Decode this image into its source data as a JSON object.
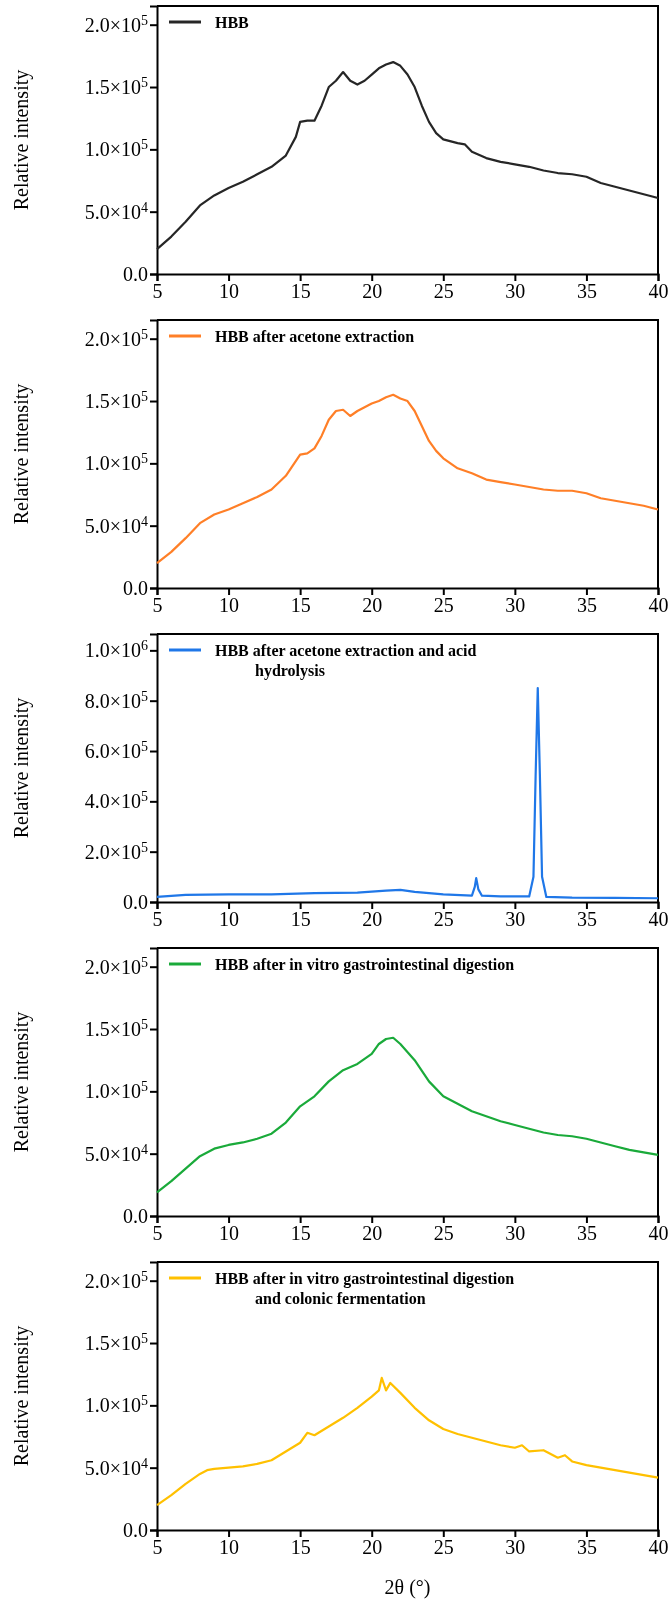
{
  "chart_data": [
    {
      "type": "line",
      "ylabel": "Relative intensity",
      "xlim": [
        5,
        40
      ],
      "xticks": [
        5,
        10,
        15,
        20,
        25,
        30,
        35,
        40
      ],
      "ylim": [
        0,
        215000
      ],
      "yticks": [
        {
          "value": 0,
          "label": "0.0"
        },
        {
          "value": 50000,
          "label": "5.0×10$^{4}$"
        },
        {
          "value": 100000,
          "label": "1.0×10$^{5}$"
        },
        {
          "value": 150000,
          "label": "1.5×10$^{5}$"
        },
        {
          "value": 200000,
          "label": "2.0×10$^{5}$"
        }
      ],
      "legend": "top left",
      "grid": false,
      "marker": "none",
      "line_style": "solid",
      "series": [
        {
          "name": "HBB",
          "color": "#262626",
          "x": [
            5,
            6,
            7,
            8,
            9,
            10,
            11,
            12,
            13,
            14,
            14.7,
            15,
            15.5,
            16,
            16.5,
            17,
            17.5,
            18,
            18.5,
            19,
            19.5,
            20,
            20.5,
            21,
            21.5,
            22,
            22.5,
            23,
            23.5,
            24,
            24.5,
            25,
            26,
            26.5,
            27,
            28,
            29,
            30,
            31,
            32,
            33,
            34,
            35,
            36,
            37,
            38,
            39,
            40
          ],
          "values": [
            20000,
            30000,
            42000,
            55000,
            63000,
            69000,
            74000,
            80000,
            86000,
            95000,
            110000,
            122000,
            123000,
            123000,
            135000,
            150000,
            155000,
            162000,
            155000,
            152000,
            155000,
            160000,
            165000,
            168000,
            170000,
            167000,
            160000,
            150000,
            135000,
            122000,
            113000,
            108000,
            105000,
            104000,
            98000,
            93000,
            90000,
            88000,
            86000,
            83000,
            81000,
            80000,
            78000,
            73000,
            70000,
            67000,
            64000,
            61000
          ]
        }
      ]
    },
    {
      "type": "line",
      "ylabel": "Relative intensity",
      "xlim": [
        5,
        40
      ],
      "xticks": [
        5,
        10,
        15,
        20,
        25,
        30,
        35,
        40
      ],
      "ylim": [
        0,
        215000
      ],
      "yticks": [
        {
          "value": 0,
          "label": "0.0"
        },
        {
          "value": 50000,
          "label": "5.0×10$^{4}$"
        },
        {
          "value": 100000,
          "label": "1.0×10$^{5}$"
        },
        {
          "value": 150000,
          "label": "1.5×10$^{5}$"
        },
        {
          "value": 200000,
          "label": "2.0×10$^{5}$"
        }
      ],
      "legend": "top left",
      "grid": false,
      "marker": "none",
      "line_style": "solid",
      "series": [
        {
          "name": "HBB  after acetone extraction",
          "color": "#ff7f27",
          "x": [
            5,
            6,
            7,
            8,
            9,
            10,
            11,
            12,
            13,
            14,
            15,
            15.5,
            16,
            16.5,
            17,
            17.5,
            18,
            18.5,
            19,
            19.5,
            20,
            20.5,
            21,
            21.5,
            22,
            22.5,
            23,
            23.5,
            24,
            24.5,
            25,
            26,
            27,
            28,
            29,
            30,
            31,
            32,
            33,
            34,
            35,
            36,
            37,
            38,
            39,
            40
          ],
          "values": [
            20000,
            29000,
            40000,
            52000,
            59000,
            63000,
            68000,
            73000,
            79000,
            90000,
            107000,
            108000,
            112000,
            122000,
            135000,
            142000,
            143000,
            138000,
            142000,
            145000,
            148000,
            150000,
            153000,
            155000,
            152000,
            150000,
            142000,
            130000,
            118000,
            110000,
            104000,
            96000,
            92000,
            87000,
            85000,
            83000,
            81000,
            79000,
            78000,
            78000,
            76000,
            72000,
            70000,
            68000,
            66000,
            63000
          ]
        }
      ]
    },
    {
      "type": "line",
      "ylabel": "Relative intensity",
      "xlim": [
        5,
        40
      ],
      "xticks": [
        5,
        10,
        15,
        20,
        25,
        30,
        35,
        40
      ],
      "ylim": [
        0,
        1065000
      ],
      "yticks": [
        {
          "value": 0,
          "label": "0.0"
        },
        {
          "value": 200000,
          "label": "2.0×10$^{5}$"
        },
        {
          "value": 400000,
          "label": "4.0×10$^{5}$"
        },
        {
          "value": 600000,
          "label": "6.0×10$^{5}$"
        },
        {
          "value": 800000,
          "label": "8.0×10$^{5}$"
        },
        {
          "value": 1000000,
          "label": "1.0×10$^{6}$"
        }
      ],
      "legend": "top left",
      "grid": false,
      "marker": "none",
      "line_style": "solid",
      "series": [
        {
          "name": "HBB  after acetone extraction and acid hydrolysis",
          "color": "#1f77e8",
          "x": [
            5,
            7,
            10,
            13,
            16,
            19,
            21,
            22,
            23,
            25,
            27,
            27.2,
            27.3,
            27.45,
            27.7,
            29,
            31,
            31.3,
            31.45,
            31.6,
            31.75,
            31.9,
            32.2,
            34,
            37,
            40
          ],
          "values": [
            20000,
            28000,
            30000,
            30000,
            35000,
            37000,
            45000,
            48000,
            40000,
            30000,
            25000,
            60000,
            95000,
            50000,
            25000,
            22000,
            22000,
            100000,
            500000,
            850000,
            500000,
            100000,
            20000,
            17000,
            16000,
            15000
          ]
        }
      ]
    },
    {
      "type": "line",
      "ylabel": "Relative intensity",
      "xlim": [
        5,
        40
      ],
      "xticks": [
        5,
        10,
        15,
        20,
        25,
        30,
        35,
        40
      ],
      "ylim": [
        0,
        215000
      ],
      "yticks": [
        {
          "value": 0,
          "label": "0.0"
        },
        {
          "value": 50000,
          "label": "5.0×10$^{4}$"
        },
        {
          "value": 100000,
          "label": "1.0×10$^{5}$"
        },
        {
          "value": 150000,
          "label": "1.5×10$^{5}$"
        },
        {
          "value": 200000,
          "label": "2.0×10$^{5}$"
        }
      ],
      "legend": "top left",
      "grid": false,
      "marker": "none",
      "line_style": "solid",
      "series": [
        {
          "name": "HBB  after in vitro gastrointestinal digestion",
          "color": "#1aaa3a",
          "x": [
            5,
            6,
            7,
            8,
            9,
            10,
            11,
            12,
            13,
            14,
            15,
            16,
            17,
            18,
            19,
            20,
            20.5,
            21,
            21.5,
            22,
            23,
            24,
            25,
            26,
            27,
            28,
            29,
            30,
            31,
            32,
            33,
            34,
            35,
            36,
            37,
            38,
            39,
            40
          ],
          "values": [
            19000,
            28000,
            38000,
            48000,
            54000,
            57000,
            59000,
            62000,
            66000,
            75000,
            88000,
            96000,
            108000,
            117000,
            122000,
            130000,
            138000,
            142000,
            143000,
            138000,
            125000,
            108000,
            96000,
            90000,
            84000,
            80000,
            76000,
            73000,
            70000,
            67000,
            65000,
            64000,
            62000,
            59000,
            56000,
            53000,
            51000,
            49000
          ]
        }
      ]
    },
    {
      "type": "line",
      "ylabel": "Relative intensity",
      "xlabel": "2θ (°)",
      "xlim": [
        5,
        40
      ],
      "xticks": [
        5,
        10,
        15,
        20,
        25,
        30,
        35,
        40
      ],
      "ylim": [
        0,
        215000
      ],
      "yticks": [
        {
          "value": 0,
          "label": "0.0"
        },
        {
          "value": 50000,
          "label": "5.0×10$^{4}$"
        },
        {
          "value": 100000,
          "label": "1.0×10$^{5}$"
        },
        {
          "value": 150000,
          "label": "1.5×10$^{5}$"
        },
        {
          "value": 200000,
          "label": "2.0×10$^{5}$"
        }
      ],
      "legend": "top left",
      "grid": false,
      "marker": "none",
      "line_style": "solid",
      "series": [
        {
          "name": "HBB  after in vitro gastrointestinal digestion and colonic fermentation",
          "color": "#ffc000",
          "x": [
            5,
            6,
            7,
            8,
            8.5,
            9,
            10,
            11,
            12,
            13,
            14,
            15,
            15.5,
            16,
            17,
            18,
            19,
            20,
            20.5,
            20.7,
            21,
            21.3,
            22,
            23,
            24,
            25,
            26,
            27,
            28,
            29,
            30,
            30.5,
            31,
            32,
            33,
            33.5,
            34,
            35,
            36,
            37,
            38,
            39,
            40
          ],
          "values": [
            20000,
            28000,
            37000,
            45000,
            48000,
            49000,
            50000,
            51000,
            53000,
            56000,
            63000,
            70000,
            78000,
            76000,
            83000,
            90000,
            98000,
            107000,
            112000,
            122000,
            112000,
            118000,
            110000,
            98000,
            88000,
            81000,
            77000,
            74000,
            71000,
            68000,
            66000,
            68000,
            63000,
            64000,
            58000,
            60000,
            55000,
            52000,
            50000,
            48000,
            46000,
            44000,
            42000
          ]
        }
      ]
    }
  ]
}
